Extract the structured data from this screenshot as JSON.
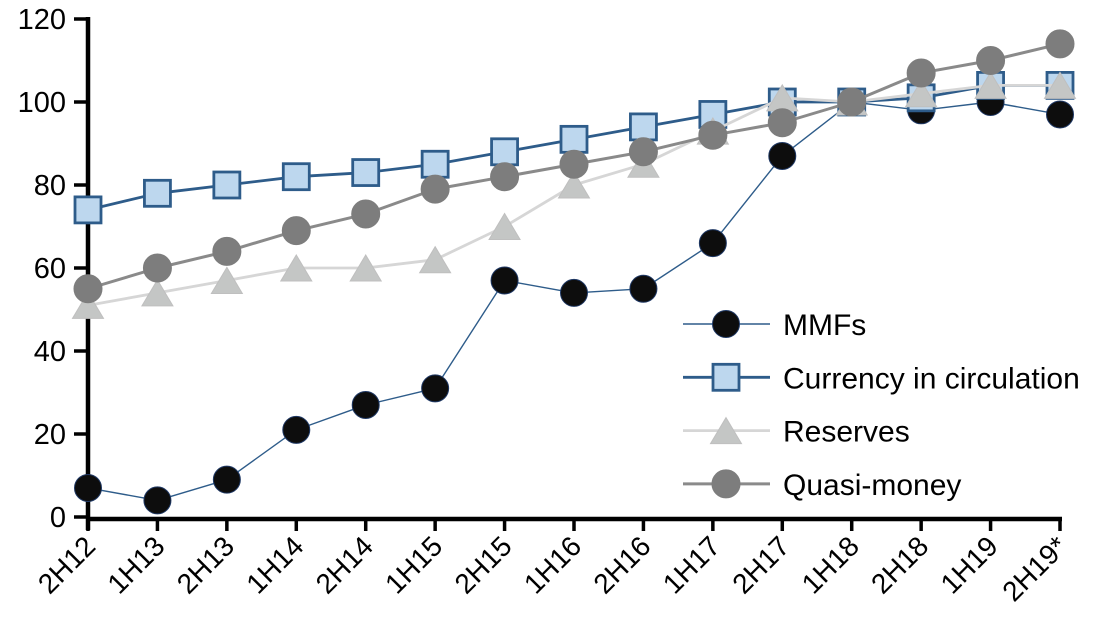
{
  "chart_data": {
    "type": "line",
    "title": "",
    "xlabel": "",
    "ylabel": "",
    "categories": [
      "2H12",
      "1H13",
      "2H13",
      "1H14",
      "2H14",
      "1H15",
      "2H15",
      "1H16",
      "2H16",
      "1H17",
      "2H17",
      "1H18",
      "2H18",
      "1H19",
      "2H19*"
    ],
    "series": [
      {
        "name": "MMFs",
        "marker": "circle",
        "values": [
          7,
          4,
          9,
          21,
          27,
          31,
          57,
          54,
          55,
          66,
          87,
          100,
          98,
          100,
          97
        ],
        "line_color": "#2e5c8a",
        "line_width": 1.4,
        "marker_fill": "#0d0d0d",
        "marker_stroke": "#1f3864",
        "marker_stroke_width": 1,
        "marker_size": 27
      },
      {
        "name": "Currency in circulation",
        "marker": "square",
        "values": [
          74,
          78,
          80,
          82,
          83,
          85,
          88,
          91,
          94,
          97,
          100,
          100,
          101,
          104,
          104
        ],
        "line_color": "#2e5c8a",
        "line_width": 2.8,
        "marker_fill": "#bdd7ee",
        "marker_stroke": "#2e5c8a",
        "marker_stroke_width": 2.8,
        "marker_size": 26
      },
      {
        "name": "Reserves",
        "marker": "triangle",
        "values": [
          51,
          54,
          57,
          60,
          60,
          62,
          70,
          80,
          85,
          93,
          101,
          100,
          102,
          104,
          104
        ],
        "line_color": "#d6d6d6",
        "line_width": 2.8,
        "marker_fill": "#c4c6c5",
        "marker_stroke": "#bfbfbf",
        "marker_stroke_width": 1,
        "marker_size": 31
      },
      {
        "name": "Quasi-money",
        "marker": "circle",
        "values": [
          55,
          60,
          64,
          69,
          73,
          79,
          82,
          85,
          88,
          92,
          95,
          100,
          107,
          110,
          114
        ],
        "line_color": "#8a8a8a",
        "line_width": 3,
        "marker_fill": "#7d7d7d",
        "marker_stroke": "#7d7d7d",
        "marker_stroke_width": 1,
        "marker_size": 28
      }
    ],
    "ylim": [
      0,
      120
    ],
    "yticks": [
      0,
      20,
      40,
      60,
      80,
      100,
      120
    ],
    "ytick_labels": [
      "0",
      "20",
      "40",
      "60",
      "80",
      "100",
      "120"
    ],
    "grid": false,
    "legend_position": "inside-right",
    "axis_color": "#000000",
    "background_color": "#ffffff"
  }
}
